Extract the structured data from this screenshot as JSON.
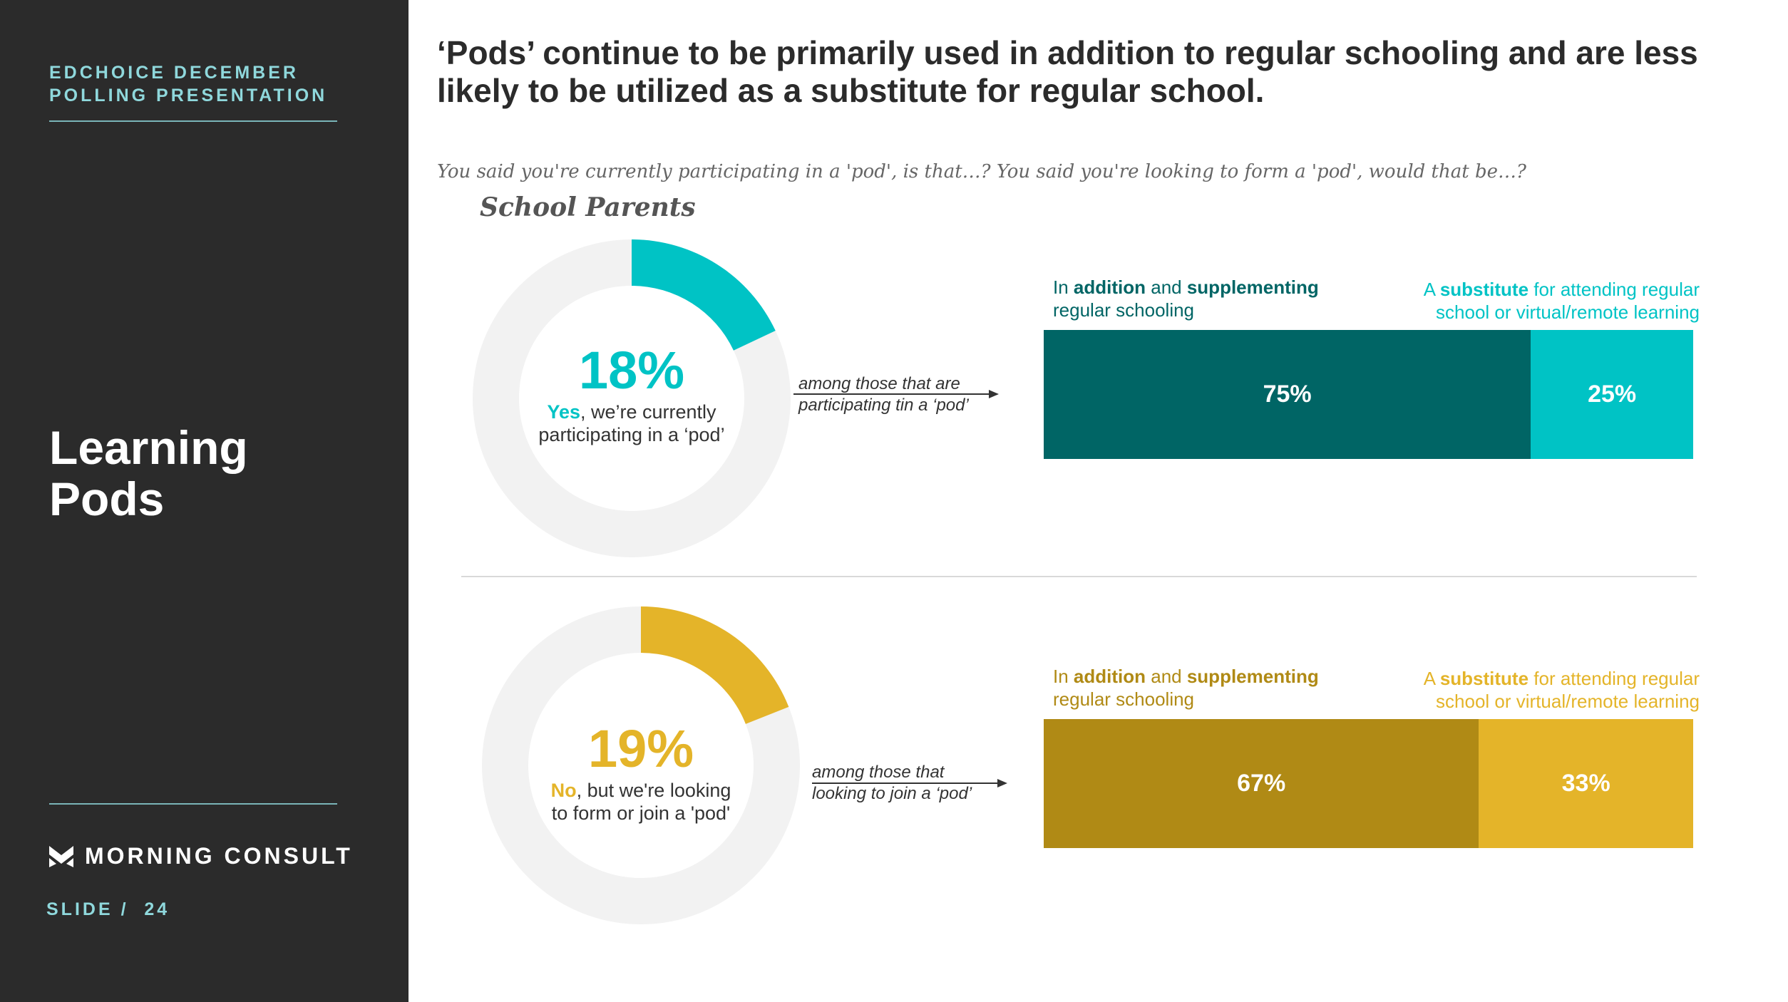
{
  "sidebar": {
    "eyebrow_line1": "EDCHOICE DECEMBER",
    "eyebrow_line2": "POLLING PRESENTATION",
    "section_line1": "Learning",
    "section_line2": "Pods",
    "brand": "MORNING CONSULT",
    "brand_icon": "morning-consult-logo-icon",
    "slide_label": "SLIDE /  24"
  },
  "header": {
    "headline": "‘Pods’ continue to be primarily used in addition to regular schooling and are less likely to be utilized as a substitute for regular school.",
    "question": "You said you're currently participating in a 'pod', is that…? You said you're looking to form a 'pod', would that be…?",
    "audience": "School Parents"
  },
  "colors": {
    "sidebar_bg": "#2b2b2b",
    "sidebar_accent": "#8fd8dc",
    "teal_light": "#00c3c5",
    "teal_dark": "#006565",
    "gold_light": "#e4b429",
    "gold_dark": "#b08a15",
    "donut_track": "#f2f2f2"
  },
  "panels": [
    {
      "percent_label": "18%",
      "desc_bold": "Yes",
      "desc_rest": ", we’re currently",
      "desc_line2": "participating in a ‘pod’",
      "annotation_line1": "among those that are",
      "annotation_line2": "participating tin a ‘pod’",
      "left_label": {
        "pre": "In ",
        "b1": "addition",
        "mid": " and ",
        "b2": "supplementing",
        "line2": "regular schooling"
      },
      "right_label": {
        "pre": "A ",
        "b1": "substitute",
        "rest": " for attending regular",
        "line2": "school or virtual/remote learning"
      },
      "seg1_label": "75%",
      "seg2_label": "25%"
    },
    {
      "percent_label": "19%",
      "desc_bold": "No",
      "desc_rest": ", but we're looking",
      "desc_line2": "to form or join a 'pod'",
      "annotation_line1": "among those that",
      "annotation_line2": "looking to join a ‘pod’",
      "left_label": {
        "pre": "In ",
        "b1": "addition",
        "mid": " and ",
        "b2": "supplementing",
        "line2": "regular schooling"
      },
      "right_label": {
        "pre": "A ",
        "b1": "substitute",
        "rest": " for attending regular",
        "line2": "school or virtual/remote learning"
      },
      "seg1_label": "67%",
      "seg2_label": "33%"
    }
  ],
  "chart_data": [
    {
      "type": "pie",
      "categories": [
        "Yes, we’re currently participating in a ‘pod’"
      ],
      "values": [
        18
      ],
      "total": 100
    },
    {
      "type": "bar",
      "categories": [
        "In addition and supplementing regular schooling",
        "A substitute for attending regular school or virtual/remote learning"
      ],
      "values": [
        75,
        25
      ]
    },
    {
      "type": "pie",
      "categories": [
        "No, but we're looking to form or join a 'pod'"
      ],
      "values": [
        19
      ],
      "total": 100
    },
    {
      "type": "bar",
      "categories": [
        "In addition and supplementing regular schooling",
        "A substitute for attending regular school or virtual/remote learning"
      ],
      "values": [
        67,
        33
      ]
    }
  ]
}
